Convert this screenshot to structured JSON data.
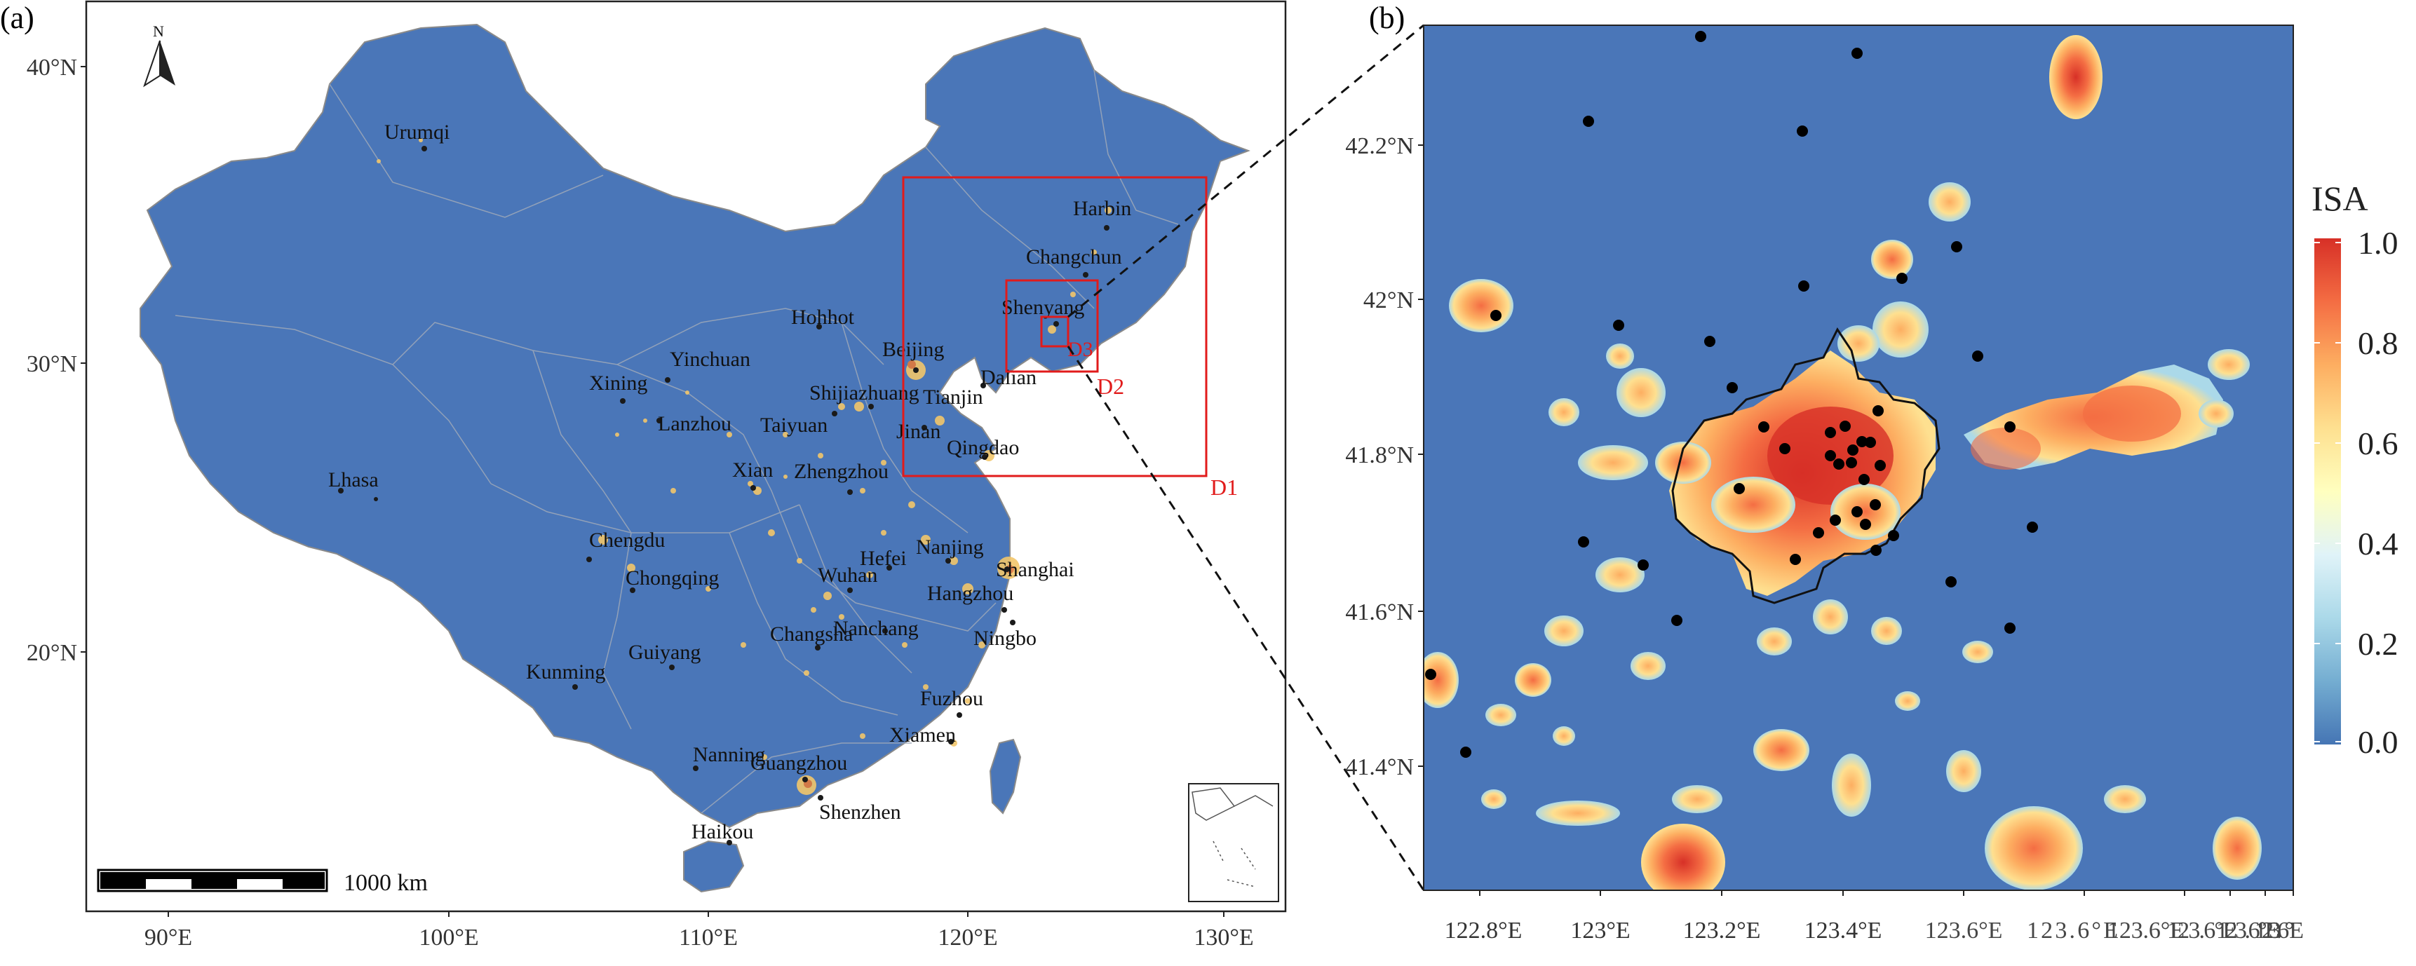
{
  "panel_a": {
    "label": "(a)",
    "colors": {
      "land": "#4a76b8",
      "frame": "#222222",
      "box": "#e11b1b",
      "urban": "#f2c66b"
    },
    "north_label": "N",
    "y_ticks": [
      "40°N",
      "30°N",
      "20°N"
    ],
    "x_ticks": [
      "90°E",
      "100°E",
      "110°E",
      "120°E",
      "130°E"
    ],
    "scalebar_label": "1000 km",
    "boxes": [
      "D1",
      "D2",
      "D3"
    ],
    "cities": [
      "Urumqi",
      "Harbin",
      "Changchun",
      "Shenyang",
      "Hohhot",
      "Beijing",
      "Yinchuan",
      "Xining",
      "Lanzhou",
      "Taiyuan",
      "Shijiazhuang",
      "Tianjin",
      "Dalian",
      "Jinan",
      "Qingdao",
      "Lhasa",
      "Xian",
      "Zhengzhou",
      "Chengdu",
      "Chongqing",
      "Hefei",
      "Nanjing",
      "Shanghai",
      "Wuhan",
      "Hangzhou",
      "Changsha",
      "Nanchang",
      "Ningbo",
      "Guiyang",
      "Kunming",
      "Fuzhou",
      "Xiamen",
      "Nanning",
      "Guangzhou",
      "Shenzhen",
      "Haikou"
    ]
  },
  "panel_b": {
    "label": "(b)",
    "colors": {
      "background": "#4a76b8"
    },
    "y_ticks": [
      "42.2°N",
      "42°N",
      "41.8°N",
      "41.6°N",
      "41.4°N"
    ],
    "x_ticks": [
      "122.8°E",
      "123°E",
      "123.2°E",
      "123.4°E",
      "123.6°E",
      "123.6°E",
      "123.6°E",
      "123.6°E",
      "123.6°E",
      "123.6°E"
    ],
    "colorbar": {
      "title": "ISA",
      "ticks": [
        "1.0",
        "0.8",
        "0.6",
        "0.4",
        "0.2",
        "0.0"
      ],
      "stops": [
        "#d73027",
        "#f46d43",
        "#fdae61",
        "#fee090",
        "#ffffbf",
        "#e0f3f8",
        "#abd9e9",
        "#74add1",
        "#4575b4"
      ]
    }
  }
}
